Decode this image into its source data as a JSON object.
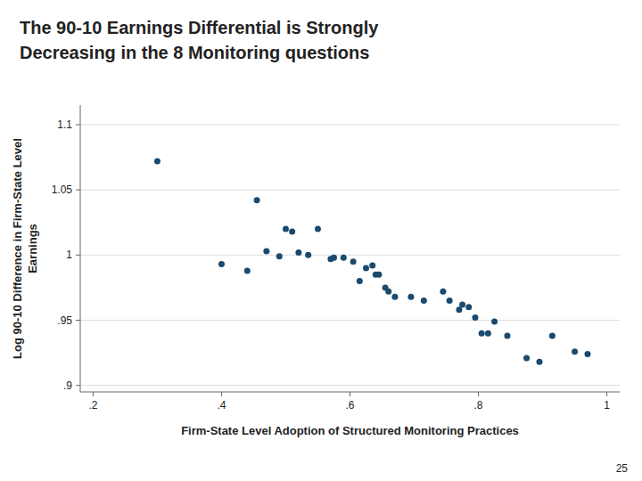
{
  "chart_data": {
    "type": "scatter",
    "title": [
      "The 90-10 Earnings Differential is Strongly",
      "Decreasing in the 8 Monitoring questions"
    ],
    "xlabel": "Firm-State Level Adoption of Structured Monitoring Practices",
    "ylabel": [
      "Log 90-10 Difference in Firm-State Level",
      "Earnings"
    ],
    "annotations": [
      "25"
    ],
    "x": [
      0.3,
      0.4,
      0.44,
      0.455,
      0.47,
      0.49,
      0.5,
      0.51,
      0.52,
      0.535,
      0.55,
      0.57,
      0.575,
      0.59,
      0.605,
      0.615,
      0.625,
      0.635,
      0.64,
      0.645,
      0.655,
      0.66,
      0.67,
      0.695,
      0.715,
      0.745,
      0.755,
      0.77,
      0.775,
      0.785,
      0.795,
      0.805,
      0.815,
      0.825,
      0.845,
      0.875,
      0.895,
      0.915,
      0.95,
      0.97
    ],
    "values": [
      1.072,
      0.993,
      0.988,
      1.042,
      1.003,
      0.999,
      1.02,
      1.018,
      1.002,
      1.0,
      1.02,
      0.997,
      0.998,
      0.998,
      0.995,
      0.98,
      0.99,
      0.992,
      0.985,
      0.985,
      0.975,
      0.972,
      0.968,
      0.968,
      0.965,
      0.972,
      0.965,
      0.958,
      0.962,
      0.96,
      0.952,
      0.94,
      0.94,
      0.949,
      0.938,
      0.921,
      0.918,
      0.938,
      0.926,
      0.924
    ],
    "color": "#1a4a6e",
    "xlim": [
      0.18,
      1.02
    ],
    "ylim": [
      0.895,
      1.115
    ],
    "xticks": [
      {
        "value": 0.2,
        "label": ".2"
      },
      {
        "value": 0.4,
        "label": ".4"
      },
      {
        "value": 0.6,
        "label": ".6"
      },
      {
        "value": 0.8,
        "label": ".8"
      },
      1
    ],
    "yticks": [
      {
        "value": 0.9,
        "label": ".9"
      },
      {
        "value": 0.95,
        "label": ".95"
      },
      1,
      1.05,
      1.1
    ],
    "grid": "y"
  }
}
